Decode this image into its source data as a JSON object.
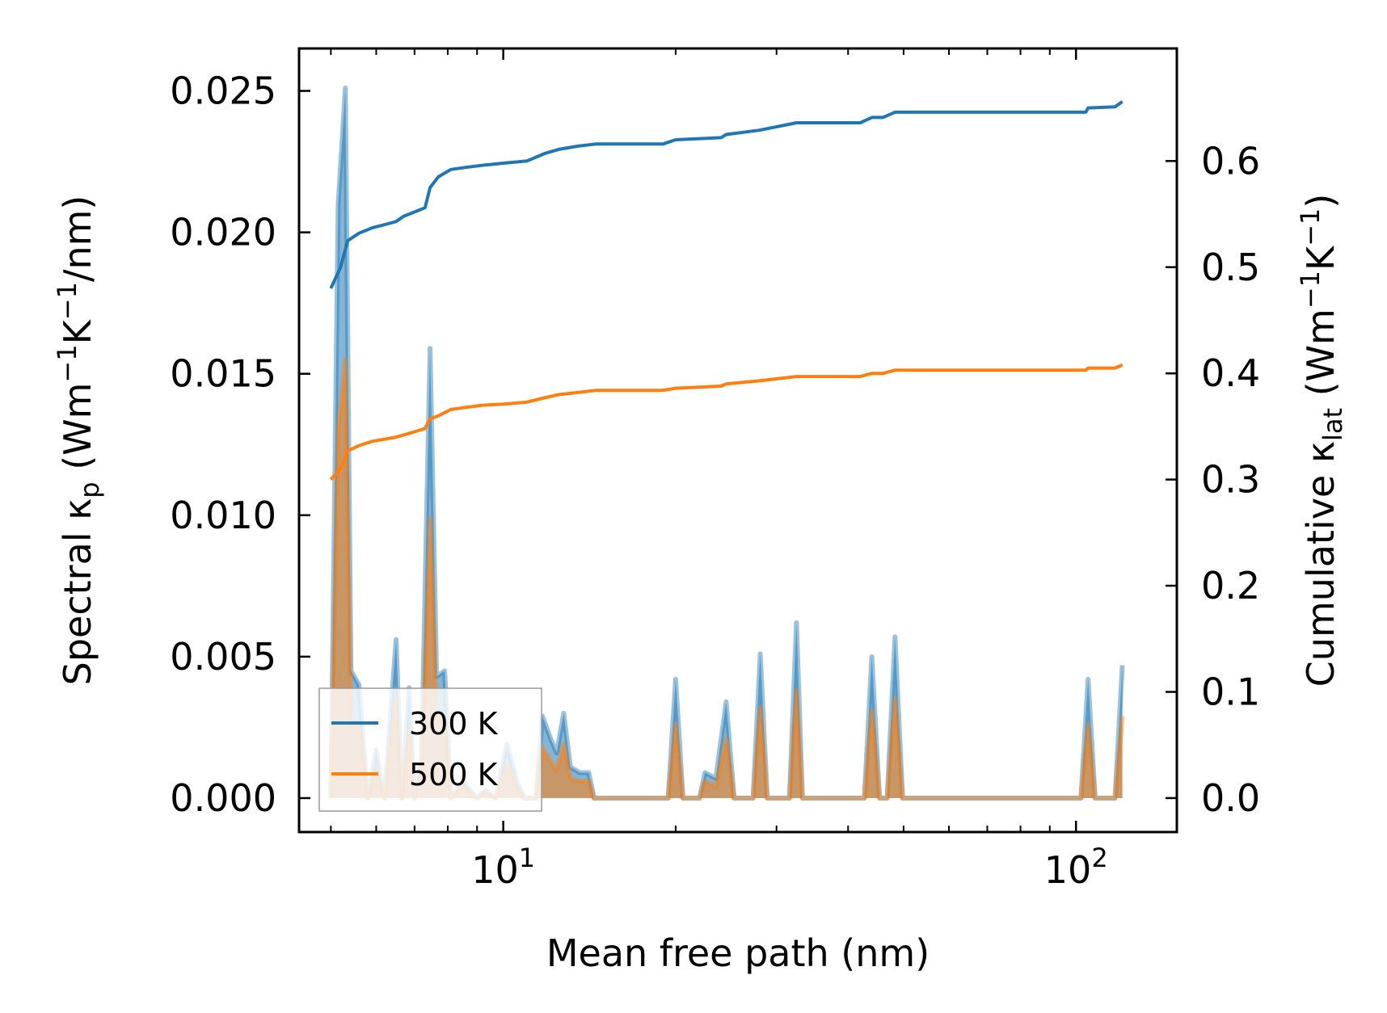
{
  "chart_data": {
    "type": "line",
    "title": "",
    "xlabel": "Mean free path (nm)",
    "ylabel_left": {
      "prefix": "Spectral κ",
      "sub": "p",
      "units": " (Wm",
      "sup1": "−1",
      "mid": "K",
      "sup2": "−1",
      "tail": "/nm)"
    },
    "ylabel_right": {
      "prefix": "Cumulative κ",
      "sub": "lat",
      "units": " (Wm",
      "sup1": "−1",
      "mid": "K",
      "sup2": "−1",
      "tail": ")"
    },
    "xscale": "log",
    "xlim": [
      4.4,
      150
    ],
    "ylim_left": [
      -0.0012,
      0.0265
    ],
    "ylim_right": [
      -0.032,
      0.706
    ],
    "x_ticks": [
      {
        "value": 10,
        "base": "10",
        "exp": "1"
      },
      {
        "value": 100,
        "base": "10",
        "exp": "2"
      }
    ],
    "y_left_ticks": [
      {
        "value": 0.0,
        "label": "0.000"
      },
      {
        "value": 0.005,
        "label": "0.005"
      },
      {
        "value": 0.01,
        "label": "0.010"
      },
      {
        "value": 0.015,
        "label": "0.015"
      },
      {
        "value": 0.02,
        "label": "0.020"
      },
      {
        "value": 0.025,
        "label": "0.025"
      }
    ],
    "y_right_ticks": [
      {
        "value": 0.0,
        "label": "0.0"
      },
      {
        "value": 0.1,
        "label": "0.1"
      },
      {
        "value": 0.2,
        "label": "0.2"
      },
      {
        "value": 0.3,
        "label": "0.3"
      },
      {
        "value": 0.4,
        "label": "0.4"
      },
      {
        "value": 0.5,
        "label": "0.5"
      },
      {
        "value": 0.6,
        "label": "0.6"
      }
    ],
    "legend": {
      "position": "lower-left",
      "entries": [
        "300 K",
        "500 K"
      ]
    },
    "series": [
      {
        "name": "300 K",
        "color": "#1f77b4",
        "spectral": [
          [
            5.0,
            0.0
          ],
          [
            5.15,
            0.021
          ],
          [
            5.3,
            0.0251
          ],
          [
            5.42,
            0.0045
          ],
          [
            5.6,
            0.004
          ],
          [
            5.8,
            0.0
          ],
          [
            6.0,
            0.0017
          ],
          [
            6.2,
            0.0
          ],
          [
            6.5,
            0.0056
          ],
          [
            6.65,
            0.0
          ],
          [
            6.85,
            0.0039
          ],
          [
            7.0,
            0.0
          ],
          [
            7.2,
            0.0015
          ],
          [
            7.45,
            0.0159
          ],
          [
            7.65,
            0.0043
          ],
          [
            7.9,
            0.0045
          ],
          [
            8.1,
            0.0
          ],
          [
            8.5,
            0.0006
          ],
          [
            9.0,
            0.0
          ],
          [
            9.3,
            0.0003
          ],
          [
            9.7,
            0.0
          ],
          [
            10.15,
            0.0019
          ],
          [
            10.6,
            0.0005
          ],
          [
            10.9,
            0.0
          ],
          [
            11.4,
            0.0
          ],
          [
            11.7,
            0.0029
          ],
          [
            12.1,
            0.0021
          ],
          [
            12.4,
            0.0016
          ],
          [
            12.75,
            0.003
          ],
          [
            13.1,
            0.0011
          ],
          [
            13.6,
            0.0009
          ],
          [
            14.1,
            0.0009
          ],
          [
            14.4,
            0.0
          ],
          [
            19.4,
            0.0
          ],
          [
            20.0,
            0.0042
          ],
          [
            20.6,
            0.0
          ],
          [
            22.0,
            0.0
          ],
          [
            22.5,
            0.0009
          ],
          [
            23.5,
            0.0007
          ],
          [
            24.5,
            0.0034
          ],
          [
            25.3,
            0.0
          ],
          [
            27.3,
            0.0
          ],
          [
            28.1,
            0.0051
          ],
          [
            28.9,
            0.0
          ],
          [
            31.6,
            0.0
          ],
          [
            32.5,
            0.0062
          ],
          [
            33.3,
            0.0
          ],
          [
            42.7,
            0.0
          ],
          [
            44.0,
            0.005
          ],
          [
            45.4,
            0.0
          ],
          [
            46.8,
            0.0
          ],
          [
            48.3,
            0.0057
          ],
          [
            49.8,
            0.0
          ],
          [
            102.0,
            0.0
          ],
          [
            105.0,
            0.0042
          ],
          [
            108.0,
            0.0
          ],
          [
            117.0,
            0.0
          ],
          [
            120.5,
            0.0047
          ]
        ],
        "cumulative": [
          [
            5.0,
            0.48
          ],
          [
            5.2,
            0.5
          ],
          [
            5.35,
            0.525
          ],
          [
            5.6,
            0.532
          ],
          [
            5.9,
            0.537
          ],
          [
            6.2,
            0.54
          ],
          [
            6.5,
            0.543
          ],
          [
            6.7,
            0.548
          ],
          [
            7.0,
            0.552
          ],
          [
            7.3,
            0.556
          ],
          [
            7.45,
            0.575
          ],
          [
            7.7,
            0.585
          ],
          [
            8.1,
            0.592
          ],
          [
            8.6,
            0.594
          ],
          [
            9.2,
            0.596
          ],
          [
            10.0,
            0.598
          ],
          [
            11.0,
            0.6
          ],
          [
            11.8,
            0.607
          ],
          [
            12.5,
            0.611
          ],
          [
            13.5,
            0.614
          ],
          [
            14.5,
            0.616
          ],
          [
            19.0,
            0.616
          ],
          [
            20.0,
            0.62
          ],
          [
            24.0,
            0.622
          ],
          [
            24.5,
            0.625
          ],
          [
            28.0,
            0.629
          ],
          [
            32.5,
            0.636
          ],
          [
            42.0,
            0.636
          ],
          [
            44.0,
            0.641
          ],
          [
            46.0,
            0.641
          ],
          [
            48.3,
            0.646
          ],
          [
            104.0,
            0.646
          ],
          [
            105.0,
            0.65
          ],
          [
            117.0,
            0.651
          ],
          [
            120.5,
            0.656
          ]
        ]
      },
      {
        "name": "500 K",
        "color": "#ff7f0e",
        "spectral": [
          [
            5.0,
            0.0
          ],
          [
            5.15,
            0.013
          ],
          [
            5.3,
            0.0155
          ],
          [
            5.42,
            0.0028
          ],
          [
            5.6,
            0.0025
          ],
          [
            5.8,
            0.0
          ],
          [
            6.0,
            0.0011
          ],
          [
            6.2,
            0.0
          ],
          [
            6.5,
            0.0035
          ],
          [
            6.65,
            0.0
          ],
          [
            6.85,
            0.0024
          ],
          [
            7.0,
            0.0
          ],
          [
            7.2,
            0.0009
          ],
          [
            7.45,
            0.0099
          ],
          [
            7.65,
            0.0027
          ],
          [
            7.9,
            0.0028
          ],
          [
            8.1,
            0.0
          ],
          [
            8.5,
            0.0004
          ],
          [
            9.0,
            0.0
          ],
          [
            9.3,
            0.0002
          ],
          [
            9.7,
            0.0
          ],
          [
            10.15,
            0.0012
          ],
          [
            10.6,
            0.0003
          ],
          [
            10.9,
            0.0
          ],
          [
            11.4,
            0.0
          ],
          [
            11.7,
            0.0018
          ],
          [
            12.1,
            0.0013
          ],
          [
            12.4,
            0.001
          ],
          [
            12.75,
            0.0019
          ],
          [
            13.1,
            0.0007
          ],
          [
            13.6,
            0.0006
          ],
          [
            14.1,
            0.0006
          ],
          [
            14.4,
            0.0
          ],
          [
            19.4,
            0.0
          ],
          [
            20.0,
            0.0026
          ],
          [
            20.6,
            0.0
          ],
          [
            22.0,
            0.0
          ],
          [
            22.5,
            0.0006
          ],
          [
            23.5,
            0.0004
          ],
          [
            24.5,
            0.0021
          ],
          [
            25.3,
            0.0
          ],
          [
            27.3,
            0.0
          ],
          [
            28.1,
            0.0032
          ],
          [
            28.9,
            0.0
          ],
          [
            31.6,
            0.0
          ],
          [
            32.5,
            0.0038
          ],
          [
            33.3,
            0.0
          ],
          [
            42.7,
            0.0
          ],
          [
            44.0,
            0.0031
          ],
          [
            45.4,
            0.0
          ],
          [
            46.8,
            0.0
          ],
          [
            48.3,
            0.0035
          ],
          [
            49.8,
            0.0
          ],
          [
            102.0,
            0.0
          ],
          [
            105.0,
            0.0026
          ],
          [
            108.0,
            0.0
          ],
          [
            117.0,
            0.0
          ],
          [
            120.5,
            0.0029
          ]
        ],
        "cumulative": [
          [
            5.0,
            0.3
          ],
          [
            5.2,
            0.31
          ],
          [
            5.35,
            0.327
          ],
          [
            5.6,
            0.332
          ],
          [
            5.9,
            0.336
          ],
          [
            6.2,
            0.338
          ],
          [
            6.5,
            0.34
          ],
          [
            6.7,
            0.342
          ],
          [
            7.0,
            0.345
          ],
          [
            7.3,
            0.348
          ],
          [
            7.45,
            0.357
          ],
          [
            7.7,
            0.36
          ],
          [
            8.1,
            0.366
          ],
          [
            8.6,
            0.368
          ],
          [
            9.2,
            0.37
          ],
          [
            10.0,
            0.371
          ],
          [
            11.0,
            0.373
          ],
          [
            11.8,
            0.377
          ],
          [
            12.5,
            0.38
          ],
          [
            13.5,
            0.382
          ],
          [
            14.5,
            0.384
          ],
          [
            19.0,
            0.384
          ],
          [
            20.0,
            0.386
          ],
          [
            24.0,
            0.388
          ],
          [
            24.5,
            0.39
          ],
          [
            28.0,
            0.393
          ],
          [
            32.5,
            0.397
          ],
          [
            42.0,
            0.397
          ],
          [
            44.0,
            0.4
          ],
          [
            46.0,
            0.4
          ],
          [
            48.3,
            0.403
          ],
          [
            104.0,
            0.403
          ],
          [
            105.0,
            0.405
          ],
          [
            117.0,
            0.405
          ],
          [
            120.5,
            0.408
          ]
        ]
      }
    ]
  }
}
